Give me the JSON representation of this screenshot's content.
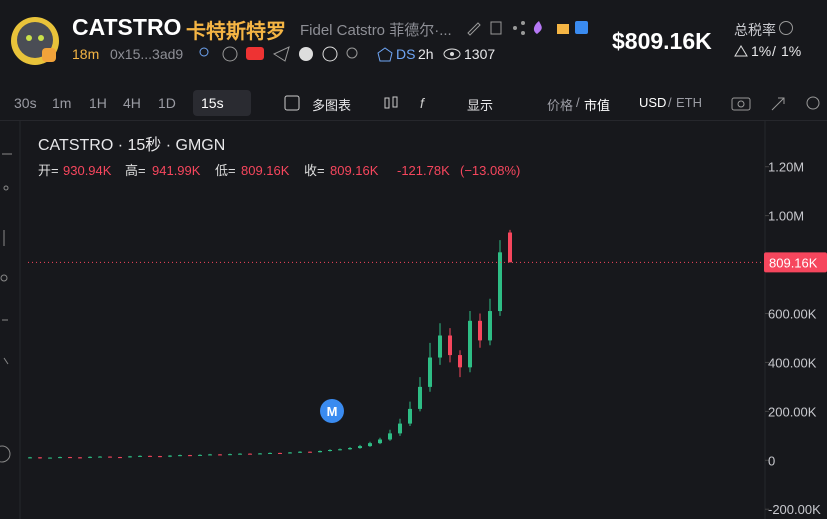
{
  "header": {
    "name": "CATSTRO",
    "cn_name": "卡特斯特罗",
    "full_name": "Fidel Catstro 菲德尔·...",
    "age": "18m",
    "address": "0x15...3ad9",
    "ds": "DS",
    "ds_age": "2h",
    "holders": "1307",
    "price": "$809.16K",
    "tax_label": "总税率",
    "tax_buy": "1%",
    "tax_sep": "/",
    "tax_sell": "1%"
  },
  "toolbar": {
    "intervals": [
      "30s",
      "1m",
      "1H",
      "4H",
      "1D"
    ],
    "selected": "15s",
    "multi": "多图表",
    "display": "显示",
    "price": "价格",
    "sep1": "/",
    "mcap": "市值",
    "usd": "USD",
    "sep2": "/",
    "eth": "ETH"
  },
  "legend": {
    "title": "CATSTRO · 15秒 · GMGN",
    "o_label": "开=",
    "o": "930.94K",
    "h_label": "高=",
    "h": "941.99K",
    "l_label": "低=",
    "l": "809.16K",
    "c_label": "收=",
    "c": "809.16K",
    "chg": "-121.78K",
    "pct": "(−13.08%)"
  },
  "chart_data": {
    "type": "candlestick",
    "up_color": "#2ebd85",
    "down_color": "#f6465d",
    "open": [
      10000,
      12000,
      9000,
      11000,
      13000,
      12000,
      10000,
      14000,
      15000,
      13000,
      12000,
      16000,
      18000,
      17000,
      15000,
      19000,
      21000,
      20000,
      22000,
      24000,
      23000,
      25000,
      27000,
      26000,
      28000,
      30000,
      29000,
      32000,
      35000,
      33000,
      38000,
      42000,
      45000,
      50000,
      58000,
      70000,
      85000,
      110000,
      150000,
      210000,
      300000,
      420000,
      510000,
      430000,
      380000,
      570000,
      490000,
      610000,
      930940
    ],
    "high": [
      14000,
      13000,
      12000,
      15000,
      14000,
      13000,
      16000,
      17000,
      16000,
      14000,
      18000,
      20000,
      19000,
      18000,
      21000,
      23000,
      22000,
      24000,
      26000,
      25000,
      27000,
      29000,
      28000,
      30000,
      32000,
      31000,
      34000,
      37000,
      36000,
      40000,
      45000,
      48000,
      54000,
      63000,
      76000,
      92000,
      125000,
      170000,
      240000,
      340000,
      480000,
      560000,
      540000,
      450000,
      610000,
      600000,
      660000,
      900000,
      941990
    ],
    "low": [
      8000,
      7000,
      7000,
      9000,
      10000,
      8000,
      9000,
      12000,
      11000,
      10000,
      11000,
      14000,
      15000,
      13000,
      13000,
      17000,
      18000,
      19000,
      20000,
      21000,
      21000,
      23000,
      24000,
      24000,
      26000,
      27000,
      27000,
      30000,
      31000,
      32000,
      36000,
      40000,
      43000,
      47000,
      55000,
      66000,
      80000,
      100000,
      140000,
      200000,
      280000,
      390000,
      400000,
      340000,
      360000,
      460000,
      470000,
      590000,
      809160
    ],
    "close": [
      12000,
      9000,
      11000,
      13000,
      12000,
      10000,
      14000,
      15000,
      13000,
      12000,
      16000,
      18000,
      17000,
      15000,
      19000,
      21000,
      20000,
      22000,
      24000,
      23000,
      25000,
      27000,
      26000,
      28000,
      30000,
      29000,
      32000,
      35000,
      33000,
      38000,
      42000,
      45000,
      50000,
      58000,
      70000,
      85000,
      110000,
      150000,
      210000,
      300000,
      420000,
      510000,
      430000,
      380000,
      570000,
      490000,
      610000,
      850000,
      809160
    ],
    "ylim": [
      -240000,
      1350000
    ],
    "yticks": [
      {
        "value": -200000,
        "label": "-200.00K"
      },
      0,
      {
        "value": 200000,
        "label": "200.00K"
      },
      {
        "value": 400000,
        "label": "400.00K"
      },
      {
        "value": 600000,
        "label": "600.00K"
      },
      {
        "value": 1000000,
        "label": "1.00M"
      },
      {
        "value": 1200000,
        "label": "1.20M"
      }
    ],
    "price_label": "809.16K",
    "marker": "M"
  }
}
